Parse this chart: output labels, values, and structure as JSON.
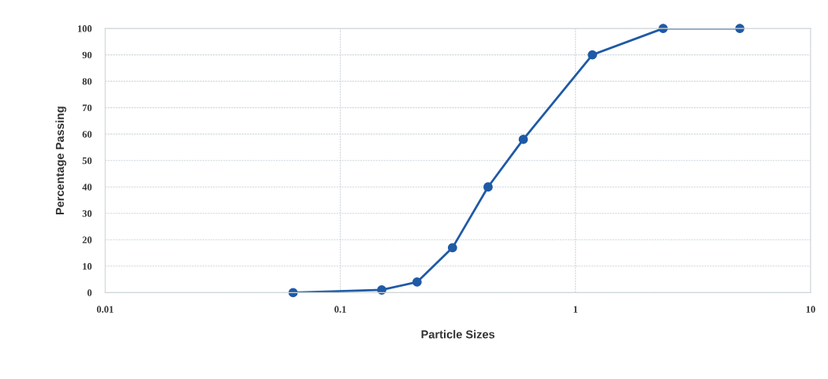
{
  "chart_data": {
    "type": "line",
    "xlabel": "Particle Sizes",
    "ylabel": "Percentage Passing",
    "x": [
      0.063,
      0.15,
      0.212,
      0.3,
      0.425,
      0.6,
      1.18,
      2.36,
      5.0
    ],
    "series": [
      {
        "color": "#1f5aa6",
        "values": [
          0,
          1,
          4,
          17,
          40,
          58,
          90,
          100,
          100
        ]
      }
    ],
    "log": "x",
    "xlim": [
      0.01,
      10
    ],
    "xticks": [
      0.01,
      0.1,
      1,
      10
    ],
    "ylim": [
      0,
      100
    ],
    "yticks": [
      0,
      10,
      20,
      30,
      40,
      50,
      60,
      70,
      80,
      90,
      100
    ],
    "grid": true,
    "marker": "circle",
    "line_style": "solid"
  }
}
